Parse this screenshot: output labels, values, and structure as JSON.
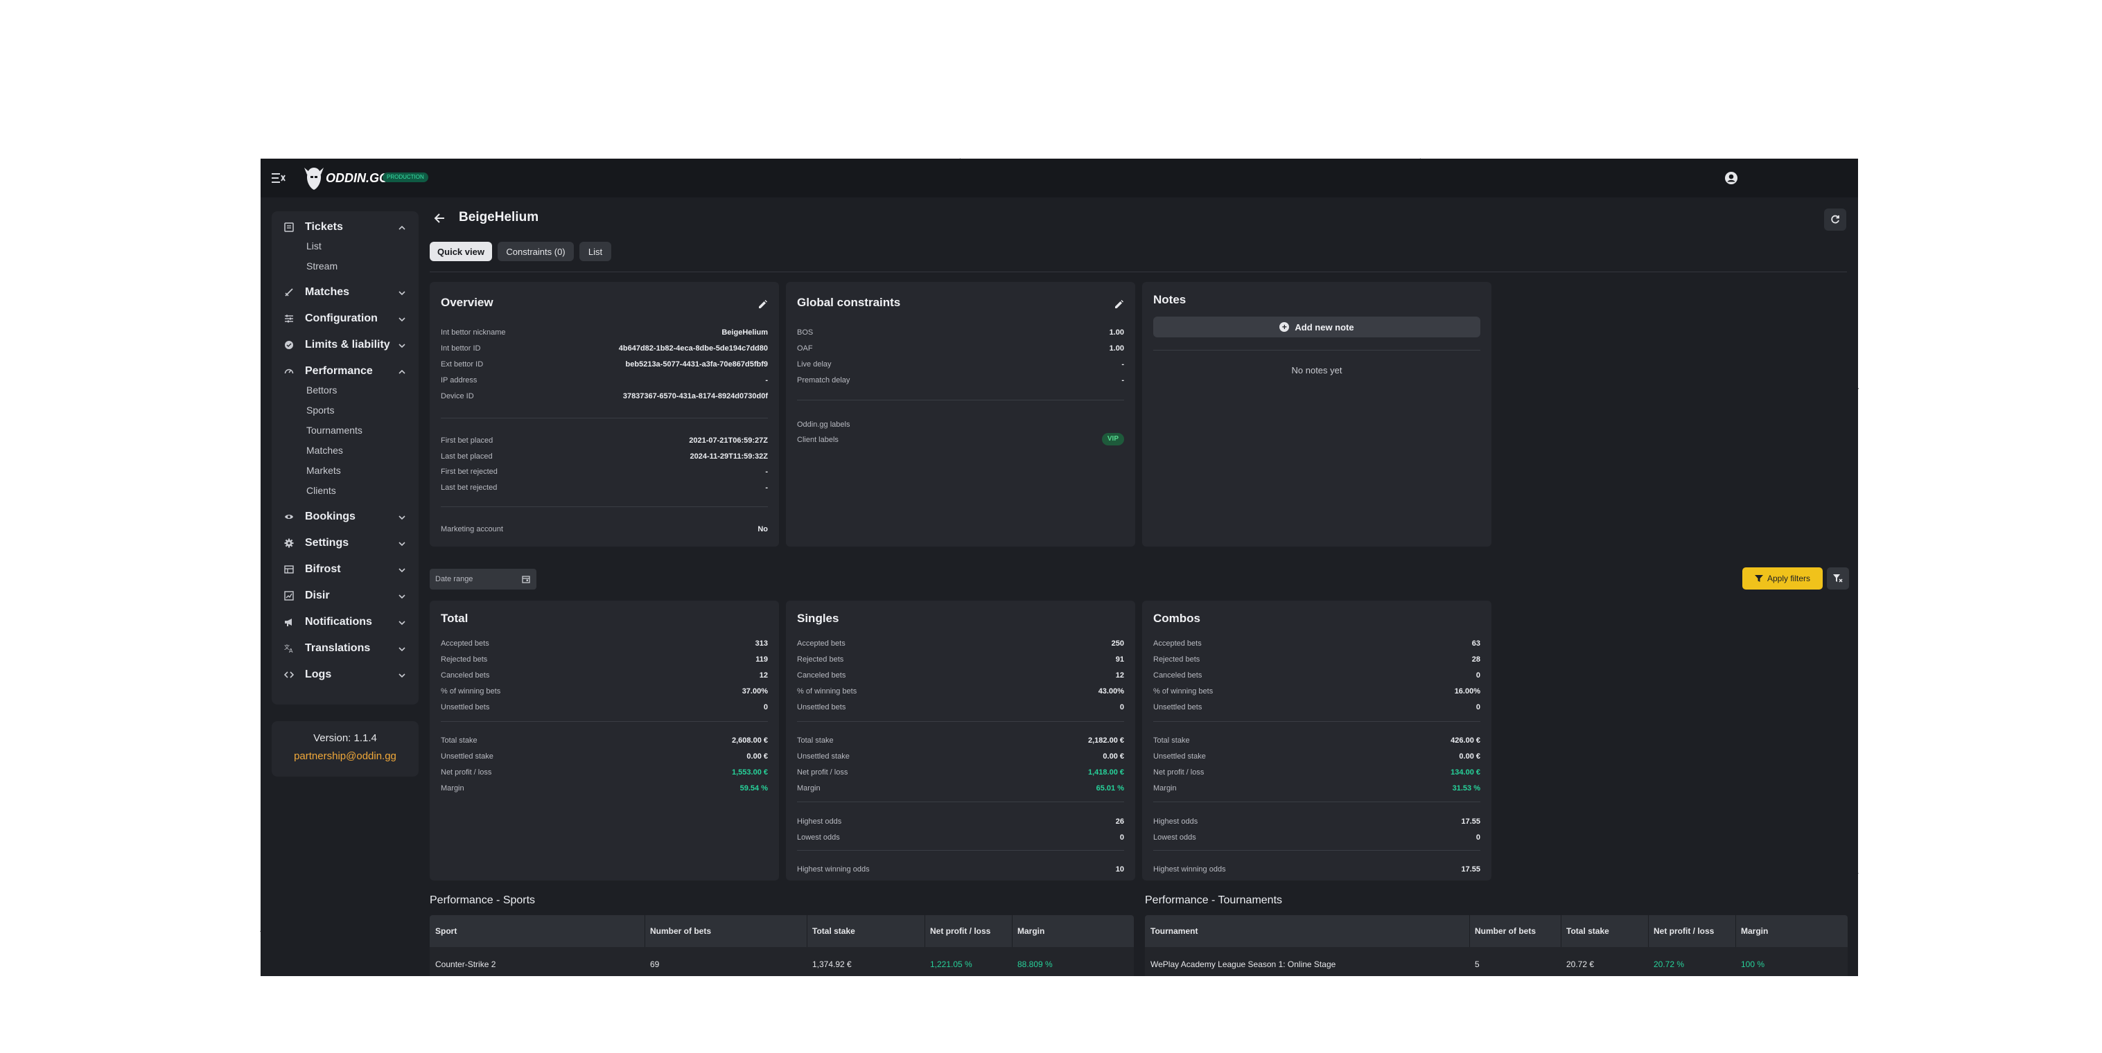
{
  "app": {
    "logo_text": "ODDIN.GG",
    "env_badge": "PRODUCTION",
    "page_title": "BeigeHelium",
    "tabs": [
      {
        "label": "Quick view"
      },
      {
        "label": "Constraints (0)"
      },
      {
        "label": "List"
      }
    ]
  },
  "sidebar": {
    "items": [
      {
        "label": "Tickets",
        "icon": "ticket-icon",
        "expanded": true,
        "children": [
          "List",
          "Stream"
        ]
      },
      {
        "label": "Matches",
        "icon": "swords-icon",
        "expanded": false
      },
      {
        "label": "Configuration",
        "icon": "sliders-icon",
        "expanded": false
      },
      {
        "label": "Limits & liability",
        "icon": "shield-icon",
        "expanded": false
      },
      {
        "label": "Performance",
        "icon": "gauge-icon",
        "expanded": true,
        "children": [
          "Bettors",
          "Sports",
          "Tournaments",
          "Matches",
          "Markets",
          "Clients"
        ]
      },
      {
        "label": "Bookings",
        "icon": "eye-icon",
        "expanded": false
      },
      {
        "label": "Settings",
        "icon": "gear-icon",
        "expanded": false
      },
      {
        "label": "Bifrost",
        "icon": "table-icon",
        "expanded": false
      },
      {
        "label": "Disir",
        "icon": "chart-icon",
        "expanded": false
      },
      {
        "label": "Notifications",
        "icon": "megaphone-icon",
        "expanded": false
      },
      {
        "label": "Translations",
        "icon": "translate-icon",
        "expanded": false
      },
      {
        "label": "Logs",
        "icon": "code-icon",
        "expanded": false
      }
    ],
    "version": "Version: 1.1.4",
    "contact": "partnership@oddin.gg"
  },
  "overview": {
    "title": "Overview",
    "rows": [
      {
        "label": "Int bettor nickname",
        "value": "BeigeHelium"
      },
      {
        "label": "Int bettor ID",
        "value": "4b647d82-1b82-4eca-8dbe-5de194c7dd80"
      },
      {
        "label": "Ext bettor ID",
        "value": "beb5213a-5077-4431-a3fa-70e867d5fbf9"
      },
      {
        "label": "IP address",
        "value": "-"
      },
      {
        "label": "Device ID",
        "value": "37837367-6570-431a-8174-8924d0730d0f"
      }
    ],
    "rows2": [
      {
        "label": "First bet placed",
        "value": "2021-07-21T06:59:27Z"
      },
      {
        "label": "Last bet placed",
        "value": "2024-11-29T11:59:32Z"
      },
      {
        "label": "First bet rejected",
        "value": "-"
      },
      {
        "label": "Last bet rejected",
        "value": "-"
      }
    ],
    "marketing_label": "Marketing account",
    "marketing_value": "No"
  },
  "global_constraints": {
    "title": "Global constraints",
    "rows": [
      {
        "label": "BOS",
        "value": "1.00"
      },
      {
        "label": "OAF",
        "value": "1.00"
      },
      {
        "label": "Live delay",
        "value": "-"
      },
      {
        "label": "Prematch delay",
        "value": "-"
      }
    ],
    "oddin_labels": "Oddin.gg labels",
    "client_labels": "Client labels",
    "client_badge": "VIP"
  },
  "notes": {
    "title": "Notes",
    "add_button": "Add new note",
    "empty": "No notes yet"
  },
  "filters": {
    "date_range_placeholder": "Date range",
    "apply_label": "Apply filters"
  },
  "stats": [
    {
      "title": "Total",
      "counts": [
        {
          "label": "Accepted bets",
          "value": "313"
        },
        {
          "label": "Rejected bets",
          "value": "119"
        },
        {
          "label": "Canceled bets",
          "value": "12"
        },
        {
          "label": "% of winning bets",
          "value": "37.00%"
        },
        {
          "label": "Unsettled bets",
          "value": "0"
        }
      ],
      "money": [
        {
          "label": "Total stake",
          "value": "2,608.00 €"
        },
        {
          "label": "Unsettled stake",
          "value": "0.00 €"
        },
        {
          "label": "Net profit / loss",
          "value": "1,553.00 €",
          "positive": true
        },
        {
          "label": "Margin",
          "value": "59.54 %",
          "positive": true
        }
      ]
    },
    {
      "title": "Singles",
      "counts": [
        {
          "label": "Accepted bets",
          "value": "250"
        },
        {
          "label": "Rejected bets",
          "value": "91"
        },
        {
          "label": "Canceled bets",
          "value": "12"
        },
        {
          "label": "% of winning bets",
          "value": "43.00%"
        },
        {
          "label": "Unsettled bets",
          "value": "0"
        }
      ],
      "money": [
        {
          "label": "Total stake",
          "value": "2,182.00 €"
        },
        {
          "label": "Unsettled stake",
          "value": "0.00 €"
        },
        {
          "label": "Net profit / loss",
          "value": "1,418.00 €",
          "positive": true
        },
        {
          "label": "Margin",
          "value": "65.01 %",
          "positive": true
        }
      ],
      "odds": [
        {
          "label": "Highest odds",
          "value": "26"
        },
        {
          "label": "Lowest odds",
          "value": "0"
        }
      ],
      "highest_winning": {
        "label": "Highest winning odds",
        "value": "10"
      }
    },
    {
      "title": "Combos",
      "counts": [
        {
          "label": "Accepted bets",
          "value": "63"
        },
        {
          "label": "Rejected bets",
          "value": "28"
        },
        {
          "label": "Canceled bets",
          "value": "0"
        },
        {
          "label": "% of winning bets",
          "value": "16.00%"
        },
        {
          "label": "Unsettled bets",
          "value": "0"
        }
      ],
      "money": [
        {
          "label": "Total stake",
          "value": "426.00 €"
        },
        {
          "label": "Unsettled stake",
          "value": "0.00 €"
        },
        {
          "label": "Net profit / loss",
          "value": "134.00 €",
          "positive": true
        },
        {
          "label": "Margin",
          "value": "31.53 %",
          "positive": true
        }
      ],
      "odds": [
        {
          "label": "Highest odds",
          "value": "17.55"
        },
        {
          "label": "Lowest odds",
          "value": "0"
        }
      ],
      "highest_winning": {
        "label": "Highest winning odds",
        "value": "17.55"
      }
    }
  ],
  "perf_sports": {
    "title": "Performance - Sports",
    "headers": [
      "Sport",
      "Number of bets",
      "Total stake",
      "Net profit / loss",
      "Margin"
    ],
    "rows": [
      [
        "Counter-Strike 2",
        "69",
        "1,374.92 €",
        "1,221.05 %",
        "88.809 %"
      ]
    ]
  },
  "perf_tournaments": {
    "title": "Performance - Tournaments",
    "headers": [
      "Tournament",
      "Number of bets",
      "Total stake",
      "Net profit / loss",
      "Margin"
    ],
    "rows": [
      [
        "WePlay Academy League Season 1: Online Stage",
        "5",
        "20.72 €",
        "20.72 %",
        "100 %"
      ]
    ]
  }
}
